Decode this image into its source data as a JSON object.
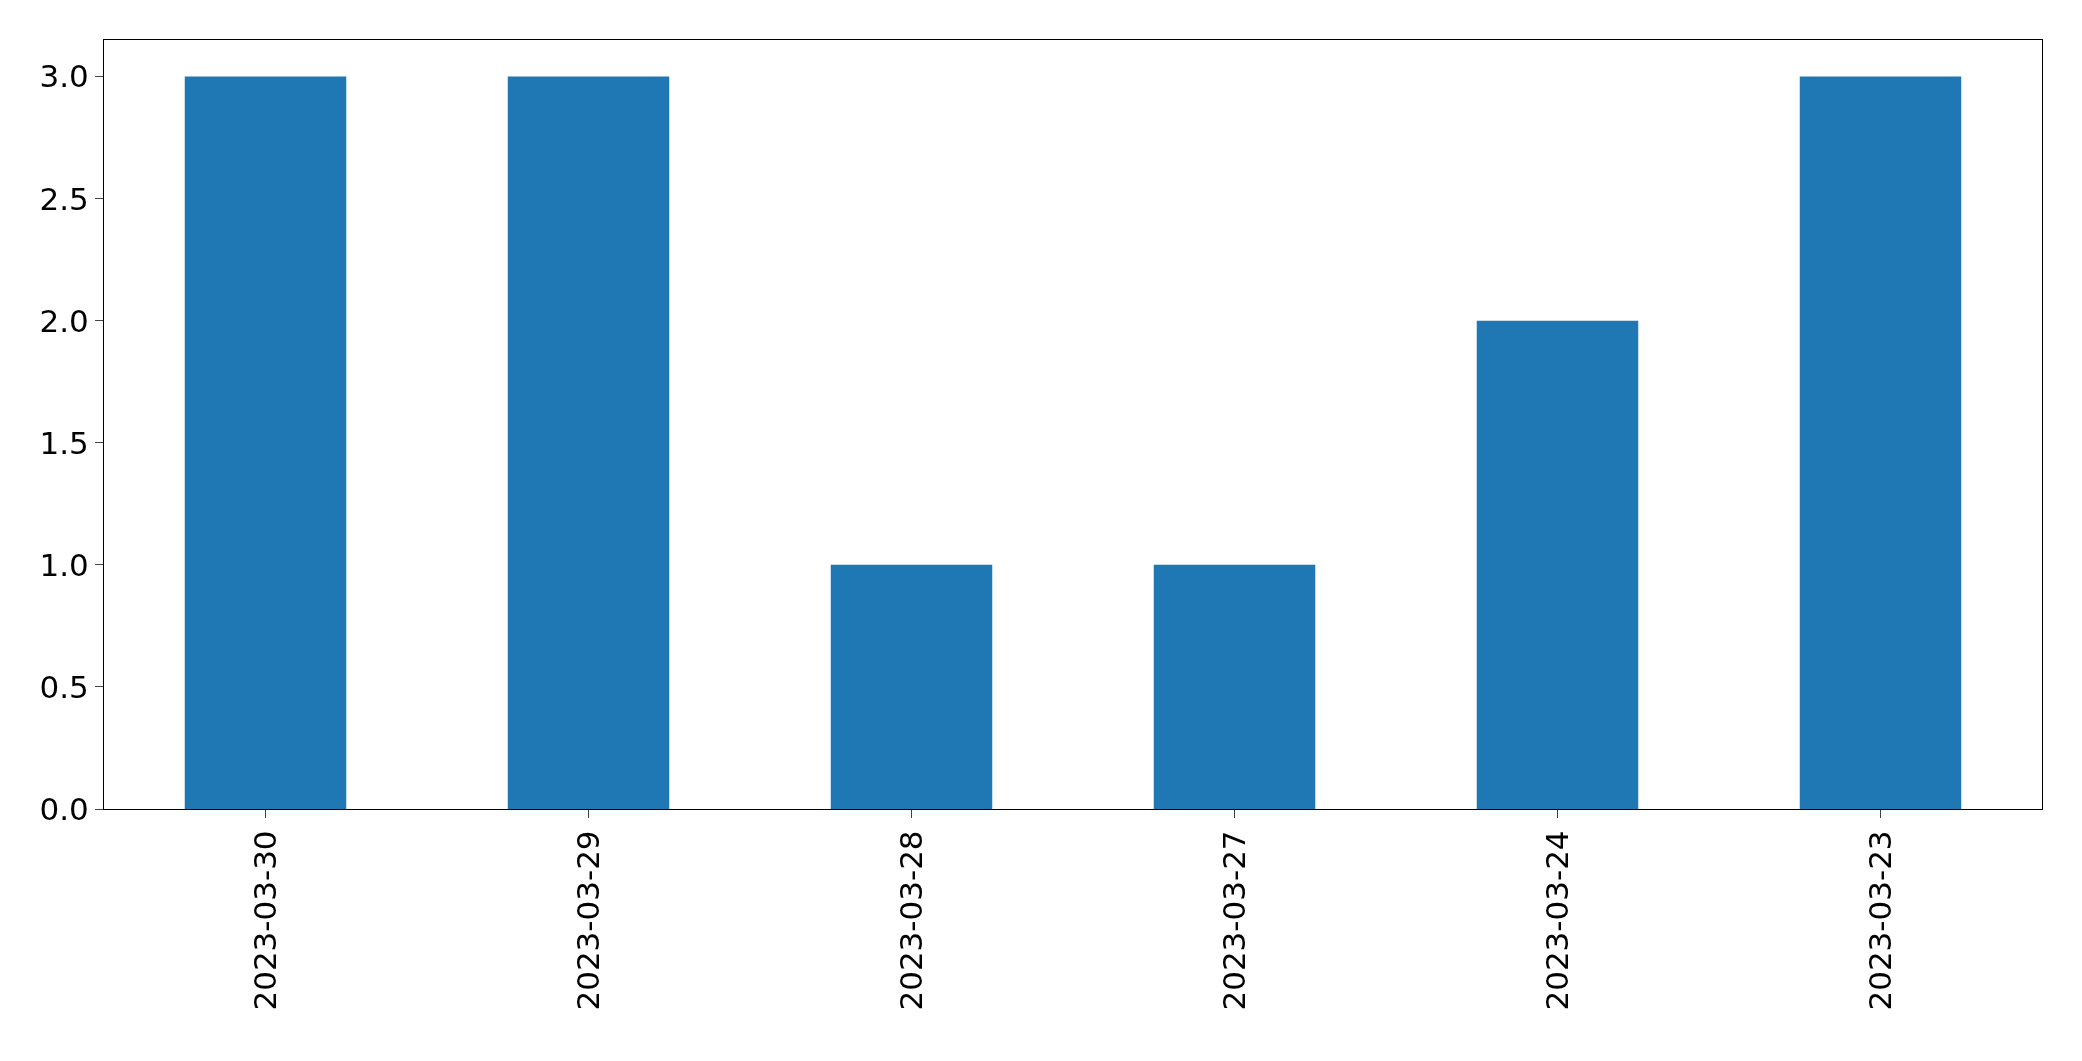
{
  "chart_data": {
    "type": "bar",
    "categories": [
      "2023-03-30",
      "2023-03-29",
      "2023-03-28",
      "2023-03-27",
      "2023-03-24",
      "2023-03-23"
    ],
    "values": [
      3,
      3,
      1,
      1,
      2,
      3
    ],
    "color": "#1f77b4",
    "ylim": [
      0,
      3.15
    ],
    "yticks": [
      {
        "value": 0,
        "label": "0.0"
      },
      {
        "value": 0.5,
        "label": "0.5"
      },
      {
        "value": 1,
        "label": "1.0"
      },
      {
        "value": 1.5,
        "label": "1.5"
      },
      {
        "value": 2,
        "label": "2.0"
      },
      {
        "value": 2.5,
        "label": "2.5"
      },
      {
        "value": 3,
        "label": "3.0"
      }
    ]
  }
}
